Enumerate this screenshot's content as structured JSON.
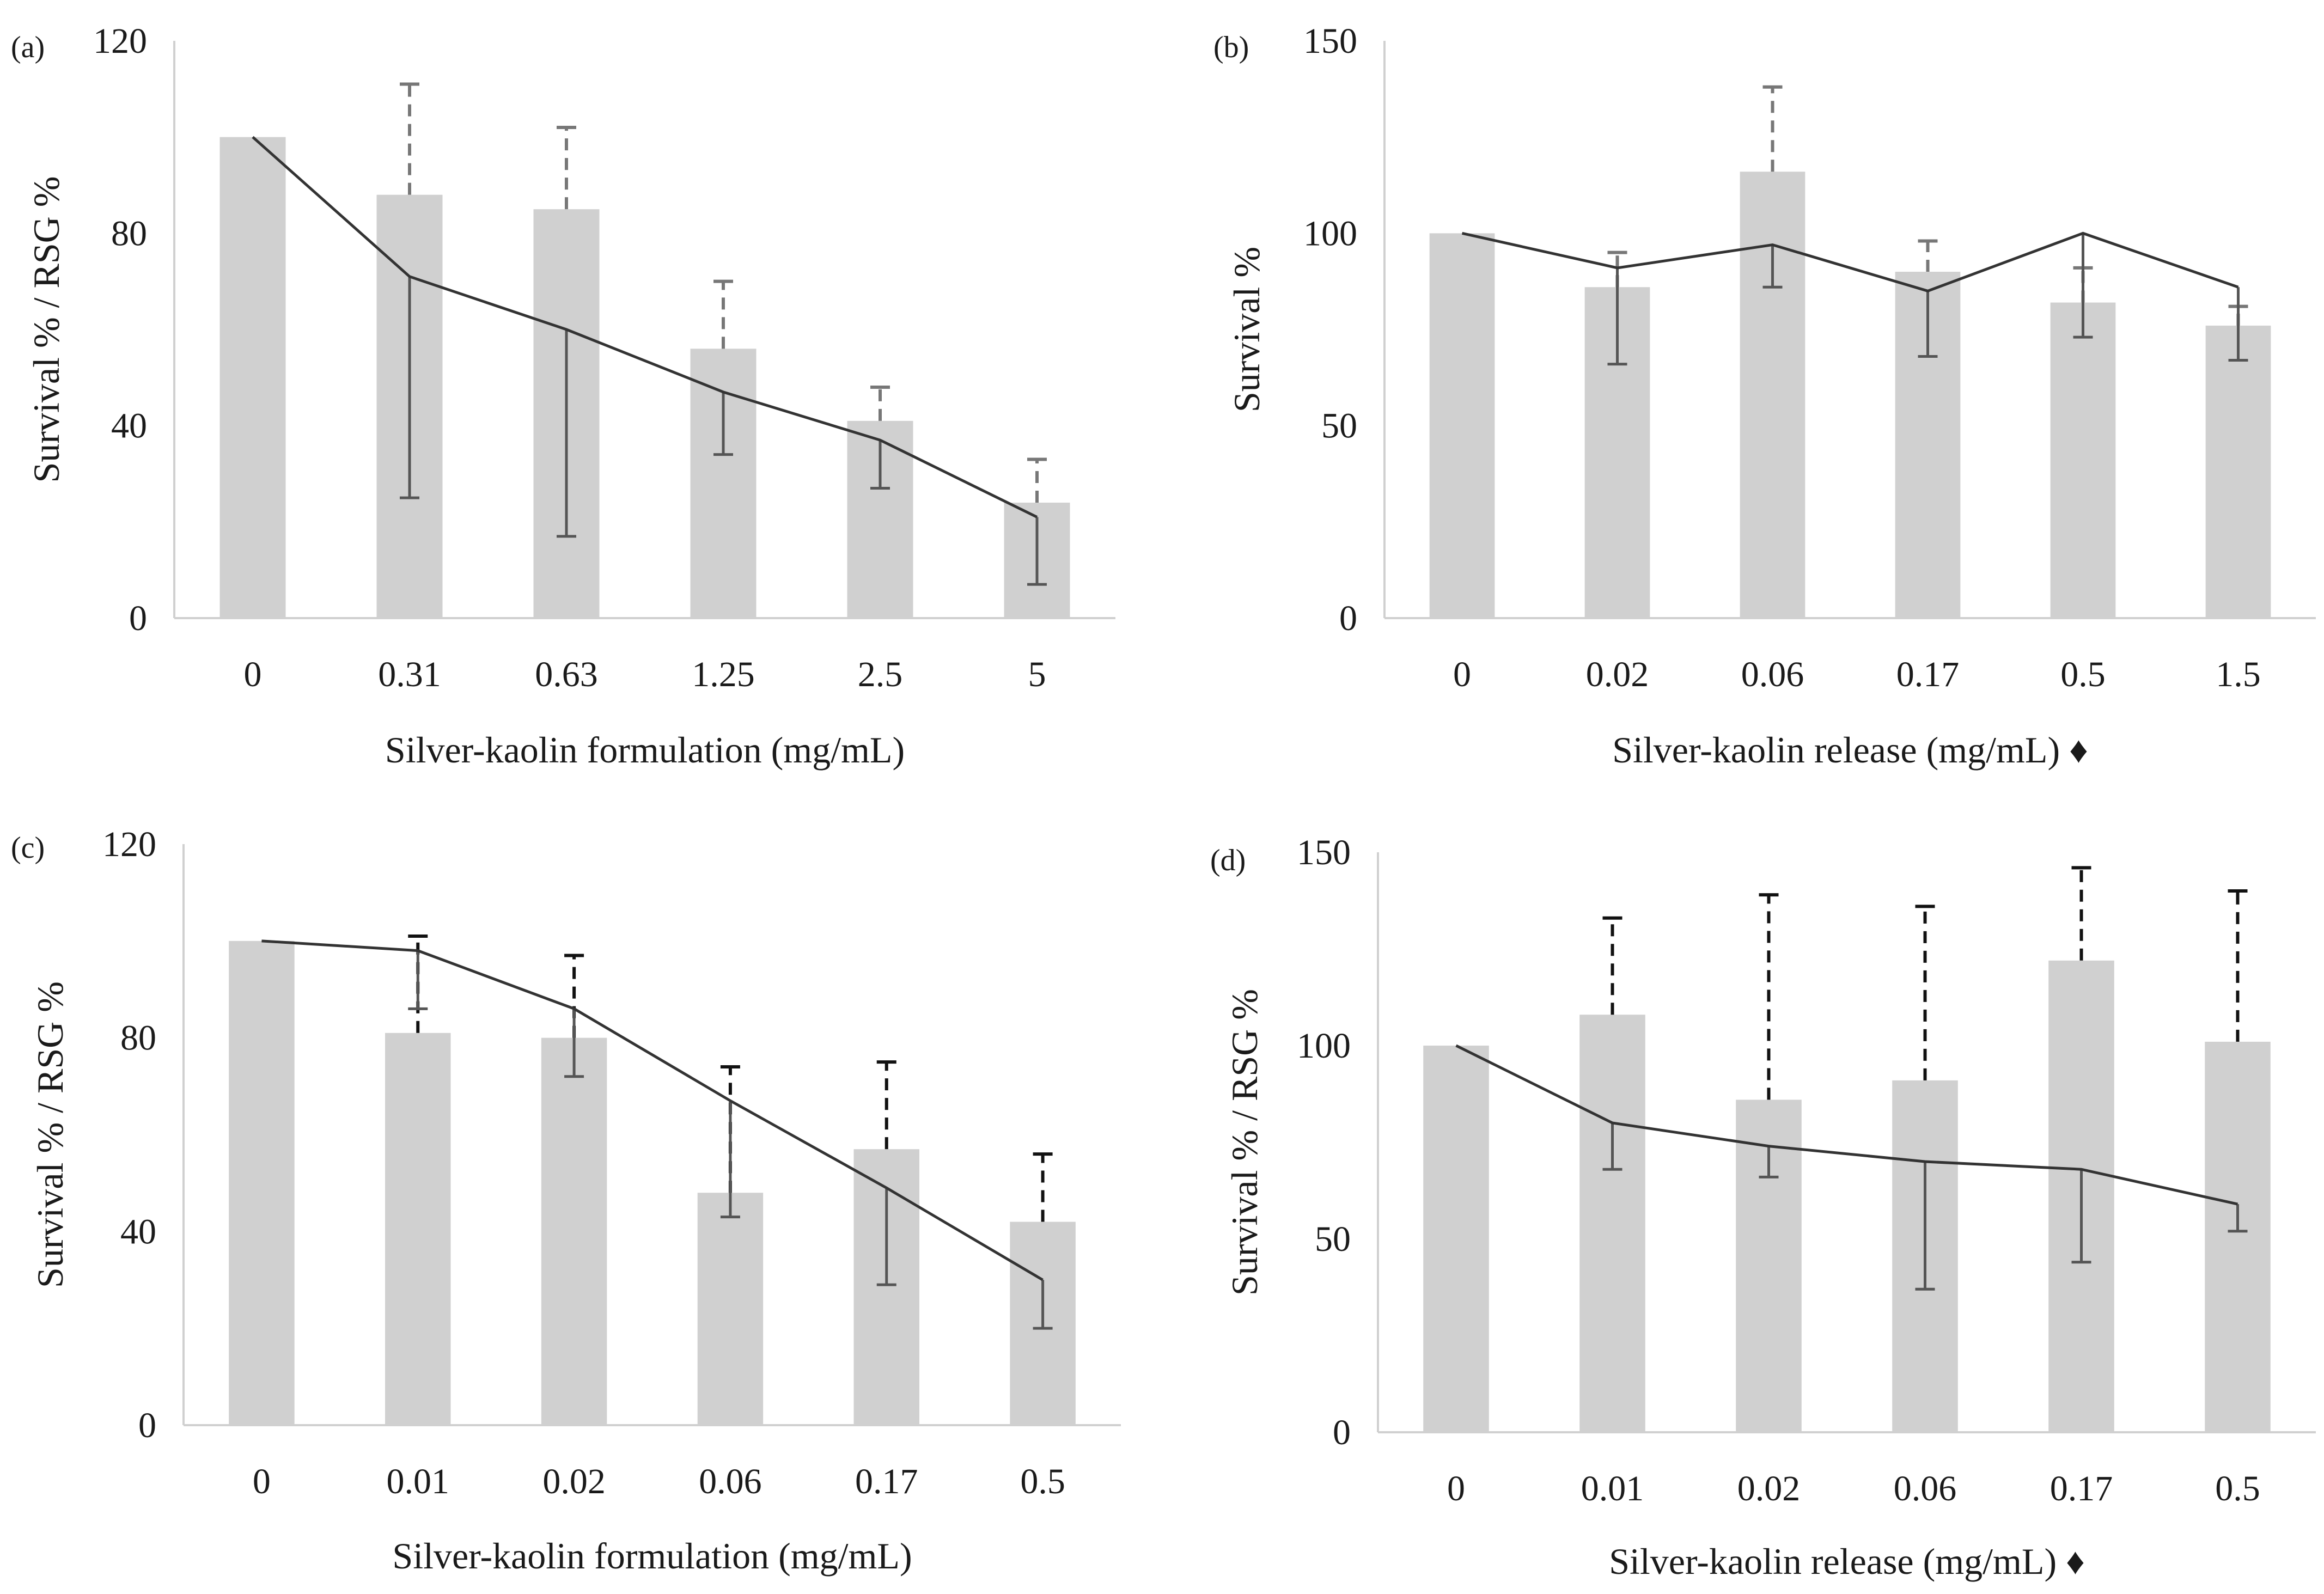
{
  "chart_data": [
    {
      "panel": "(a)",
      "type": "bar",
      "categories": [
        "0",
        "0.31",
        "0.63",
        "1.25",
        "2.5",
        "5"
      ],
      "series": [
        {
          "name": "Survival %",
          "type": "bar",
          "values": [
            100,
            88,
            85,
            56,
            41,
            24
          ],
          "error_plus": [
            0,
            23,
            17,
            14,
            7,
            9
          ]
        },
        {
          "name": "RSG %",
          "type": "line",
          "values": [
            100,
            71,
            60,
            47,
            37,
            21
          ],
          "error_minus": [
            0,
            46,
            43,
            13,
            10,
            14
          ]
        }
      ],
      "xlabel": "Silver-kaolin formulation (mg/mL)",
      "ylabel": "Survival % / RSG %",
      "ylim": [
        0,
        120
      ],
      "yticks": [
        "0",
        "40",
        "80",
        "120"
      ],
      "error_style": "gray-dashed"
    },
    {
      "panel": "(b)",
      "type": "bar",
      "categories": [
        "0",
        "0.02",
        "0.06",
        "0.17",
        "0.5",
        "1.5"
      ],
      "series": [
        {
          "name": "Survival %",
          "type": "bar",
          "values": [
            100,
            86,
            116,
            90,
            82,
            76
          ],
          "error_plus": [
            0,
            9,
            22,
            8,
            9,
            5
          ]
        },
        {
          "name": "Survival % (release)",
          "type": "line",
          "values": [
            100,
            91,
            97,
            85,
            100,
            86
          ],
          "error_minus": [
            0,
            25,
            11,
            17,
            27,
            19
          ]
        }
      ],
      "xlabel": "Silver-kaolin release (mg/mL) ♦",
      "ylabel": "Survival %",
      "ylim": [
        0,
        150
      ],
      "yticks": [
        "0",
        "50",
        "100",
        "150"
      ],
      "error_style": "gray-dashed"
    },
    {
      "panel": "(c)",
      "type": "bar",
      "categories": [
        "0",
        "0.01",
        "0.02",
        "0.06",
        "0.17",
        "0.5"
      ],
      "series": [
        {
          "name": "Survival %",
          "type": "bar",
          "values": [
            100,
            81,
            80,
            48,
            57,
            42
          ],
          "error_plus": [
            0,
            20,
            17,
            26,
            18,
            14
          ]
        },
        {
          "name": "RSG %",
          "type": "line",
          "values": [
            100,
            98,
            86,
            67,
            49,
            30
          ],
          "error_minus": [
            0,
            12,
            14,
            24,
            20,
            10
          ]
        }
      ],
      "xlabel": "Silver-kaolin formulation (mg/mL)",
      "ylabel": "Survival % / RSG %",
      "ylim": [
        0,
        120
      ],
      "yticks": [
        "0",
        "40",
        "80",
        "120"
      ],
      "error_style": "black-dashed"
    },
    {
      "panel": "(d)",
      "type": "bar",
      "categories": [
        "0",
        "0.01",
        "0.02",
        "0.06",
        "0.17",
        "0.5"
      ],
      "series": [
        {
          "name": "Survival %",
          "type": "bar",
          "values": [
            100,
            108,
            86,
            91,
            122,
            101
          ],
          "error_plus": [
            0,
            25,
            53,
            45,
            24,
            39
          ]
        },
        {
          "name": "RSG %",
          "type": "line",
          "values": [
            100,
            80,
            74,
            70,
            68,
            59
          ],
          "error_minus": [
            0,
            12,
            8,
            33,
            24,
            7
          ]
        }
      ],
      "xlabel": "Silver-kaolin release (mg/mL) ♦",
      "ylabel": "Survival % / RSG %",
      "ylim": [
        0,
        150
      ],
      "yticks": [
        "0",
        "50",
        "100",
        "150"
      ],
      "error_style": "black-dashed"
    }
  ],
  "colors": {
    "bar": "#d0d0d0",
    "trend_line": "#333333",
    "error_gray": "#777777",
    "error_black": "#111111",
    "error_down": "#555555"
  }
}
